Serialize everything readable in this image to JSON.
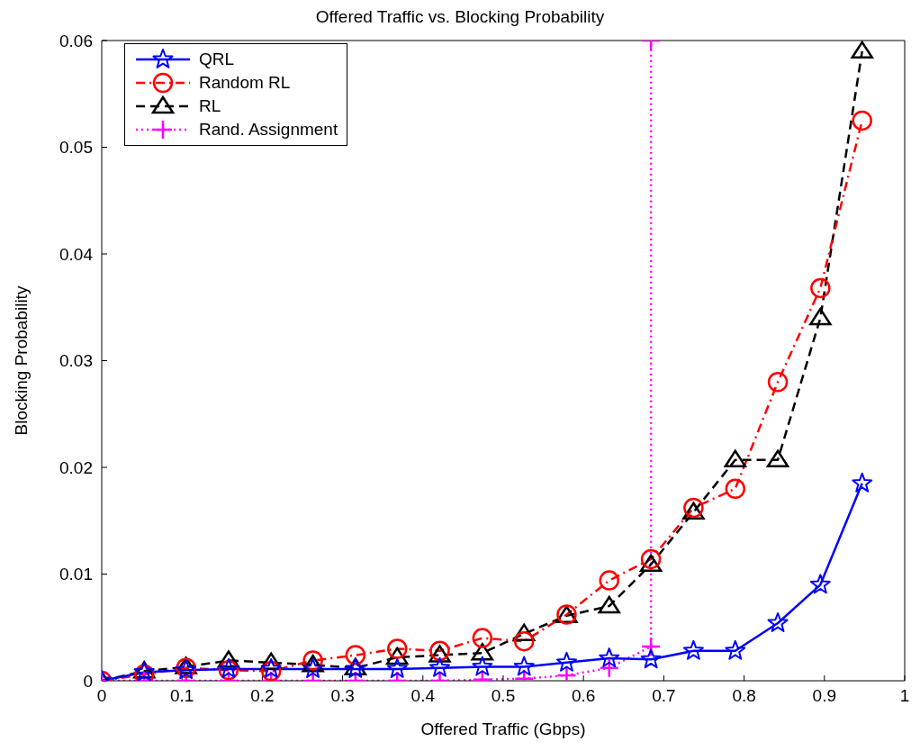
{
  "chart_data": {
    "type": "line",
    "title": "Offered Traffic vs. Blocking Probability",
    "xlabel": "Offered Traffic (Gbps)",
    "ylabel": "Blocking Probability",
    "x": [
      0,
      0.053,
      0.105,
      0.158,
      0.211,
      0.263,
      0.316,
      0.368,
      0.421,
      0.474,
      0.526,
      0.579,
      0.632,
      0.684,
      0.737,
      0.789,
      0.842,
      0.895,
      0.947
    ],
    "series": [
      {
        "name": "QRL",
        "color": "#0000ff",
        "marker": "star",
        "line_style": "solid",
        "values": [
          0,
          0.0008,
          0.001,
          0.0011,
          0.0011,
          0.0011,
          0.0011,
          0.0011,
          0.0012,
          0.0013,
          0.0013,
          0.0017,
          0.0021,
          0.002,
          0.0028,
          0.0028,
          0.0054,
          0.009,
          0.0185
        ]
      },
      {
        "name": "Random RL",
        "color": "#ff0000",
        "marker": "circle",
        "line_style": "dashdot",
        "values": [
          0,
          0.0006,
          0.0012,
          0.001,
          0.0009,
          0.0019,
          0.0024,
          0.003,
          0.0028,
          0.004,
          0.0037,
          0.0062,
          0.0094,
          0.0114,
          0.0162,
          0.018,
          0.028,
          0.0368,
          0.0525
        ]
      },
      {
        "name": "RL",
        "color": "#000000",
        "marker": "triangle",
        "line_style": "dashed",
        "values": [
          0,
          0.0009,
          0.0013,
          0.0019,
          0.0017,
          0.0015,
          0.0012,
          0.0022,
          0.0024,
          0.0026,
          0.0044,
          0.0061,
          0.007,
          0.0109,
          0.0158,
          0.0207,
          0.0207,
          0.034,
          0.059
        ]
      },
      {
        "name": "Rand. Assignment",
        "color": "#ff00ff",
        "marker": "cross",
        "line_style": "dotted",
        "x": [
          0,
          0.053,
          0.105,
          0.158,
          0.211,
          0.263,
          0.316,
          0.368,
          0.421,
          0.474,
          0.526,
          0.579,
          0.632,
          0.684,
          0.684
        ],
        "values": [
          0,
          0,
          0,
          0,
          0,
          0,
          0,
          0,
          0,
          0.0001,
          0.0002,
          0.0005,
          0.0012,
          0.0032,
          0.06
        ]
      }
    ],
    "xlim": [
      0,
      1
    ],
    "xticks": [
      0,
      0.1,
      0.2,
      0.3,
      0.4,
      0.5,
      0.6,
      0.7,
      0.8,
      0.9,
      1
    ],
    "ylim": [
      0,
      0.06
    ],
    "yticks": [
      0,
      0.01,
      0.02,
      0.03,
      0.04,
      0.05,
      0.06
    ],
    "grid": false,
    "legend": "top left"
  }
}
